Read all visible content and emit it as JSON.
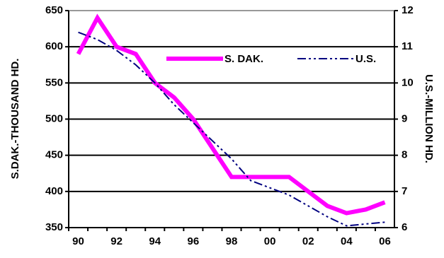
{
  "chart_data": {
    "type": "line",
    "categories": [
      "90",
      null,
      "92",
      null,
      "94",
      null,
      "96",
      null,
      "98",
      null,
      "00",
      null,
      "02",
      null,
      "04",
      null,
      "06"
    ],
    "series": [
      {
        "name": "S. DAK.",
        "color": "#ff00ff",
        "values": [
          590,
          640,
          600,
          590,
          550,
          530,
          500,
          460,
          420,
          420,
          420,
          420,
          400,
          380,
          370,
          375,
          385
        ]
      },
      {
        "name": "U.S.",
        "color": "#000080",
        "axis": "y2",
        "values": [
          11.4,
          11.2,
          10.9,
          10.5,
          10.0,
          9.4,
          8.9,
          8.4,
          7.9,
          7.3,
          7.1,
          6.9,
          6.6,
          6.3,
          6.05,
          6.1,
          6.15
        ]
      }
    ],
    "ylabel": "S.DAK.-THOUSAND HD.",
    "y2label": "U.S.-MILLION HD.",
    "ylim": [
      350,
      650
    ],
    "yticks": [
      350,
      400,
      450,
      500,
      550,
      600,
      650
    ],
    "y2lim": [
      6,
      12
    ],
    "y2ticks": [
      6,
      7,
      8,
      9,
      10,
      11,
      12
    ],
    "grid": true
  }
}
